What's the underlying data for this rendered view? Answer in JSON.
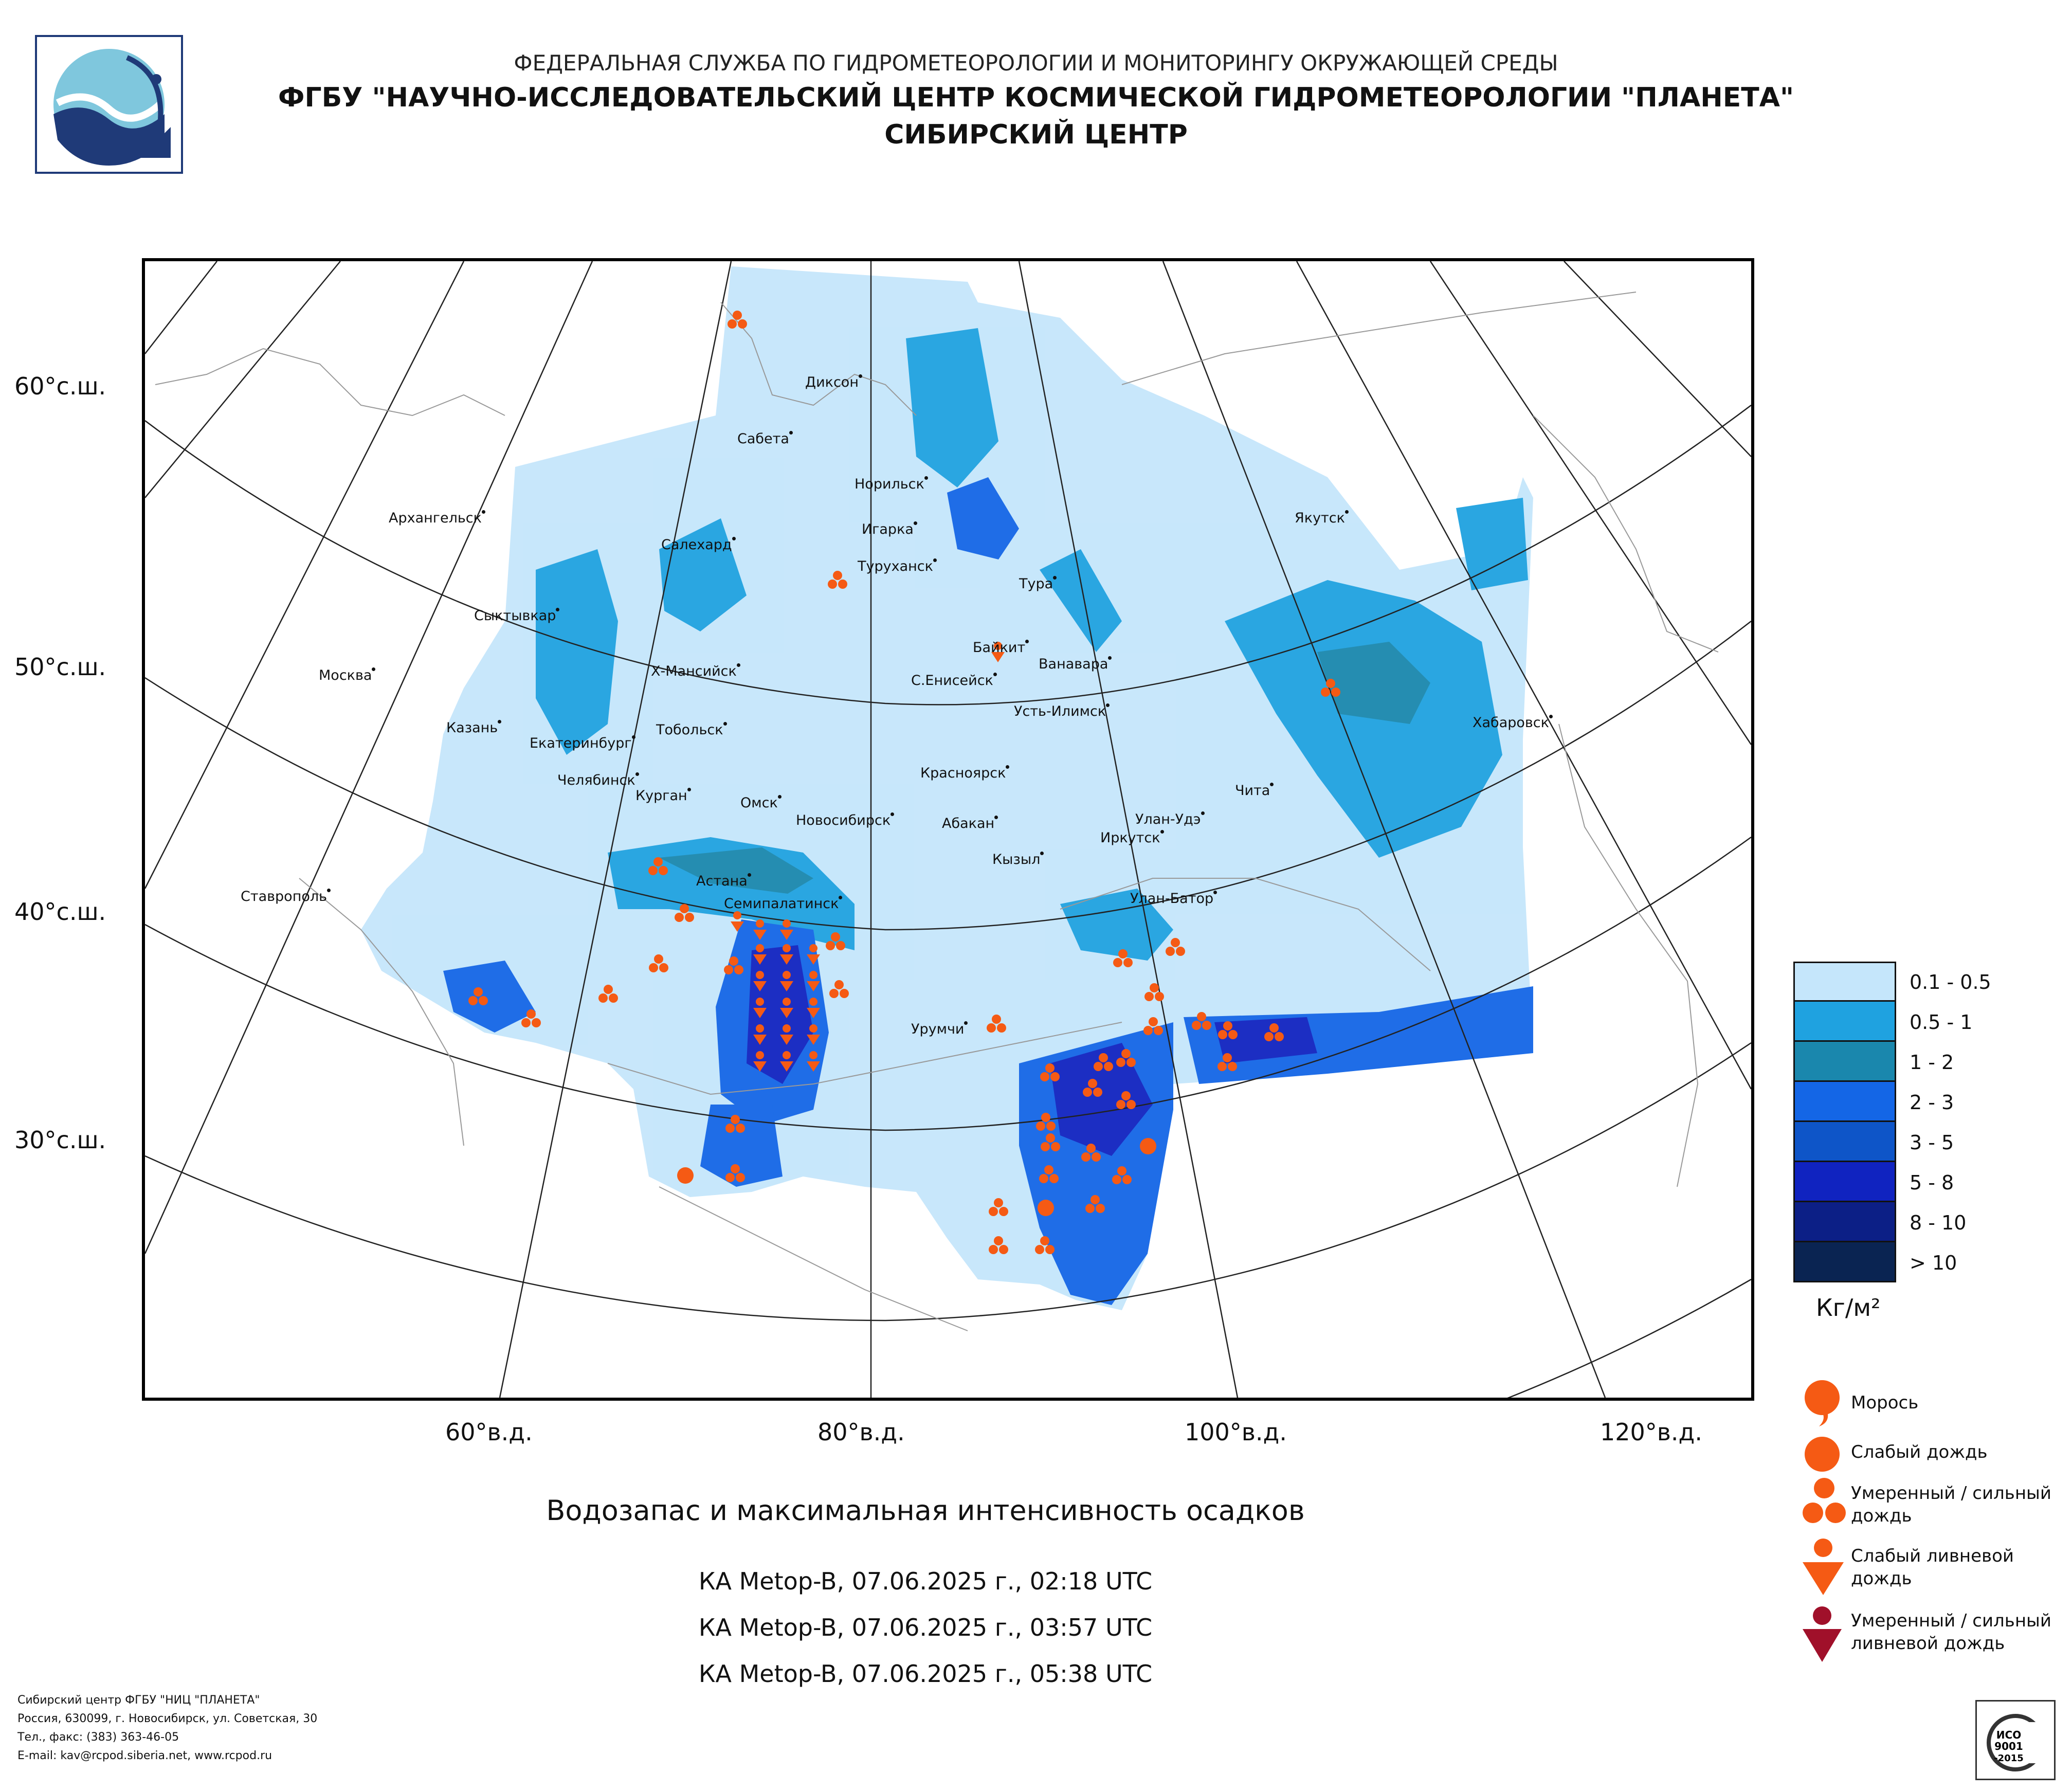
{
  "header": {
    "line1": "ФЕДЕРАЛЬНАЯ СЛУЖБА ПО ГИДРОМЕТЕОРОЛОГИИ И МОНИТОРИНГУ ОКРУЖАЮЩЕЙ СРЕДЫ",
    "line2": "ФГБУ \"НАУЧНО-ИССЛЕДОВАТЕЛЬСКИЙ ЦЕНТР КОСМИЧЕСКОЙ ГИДРОМЕТЕОРОЛОГИИ \"ПЛАНЕТА\"",
    "line3": "СИБИРСКИЙ ЦЕНТР"
  },
  "map": {
    "latitude_labels": [
      "60°с.ш.",
      "50°с.ш.",
      "40°с.ш.",
      "30°с.ш."
    ],
    "longitude_labels": [
      "60°в.д.",
      "80°в.д.",
      "100°в.д.",
      "120°в.д."
    ],
    "cities": [
      "Диксон",
      "Сабета",
      "Норильск",
      "Игарка",
      "Салехард",
      "Архангельск",
      "Туруханск",
      "Тура",
      "Якутск",
      "Сыктывкар",
      "Байкит",
      "Ванавара",
      "Москва",
      "Х-Мансийск",
      "С.Енисейск",
      "Усть-Илимск",
      "Казань",
      "Екатеринбург",
      "Тобольск",
      "Хабаровск",
      "Челябинск",
      "Курган",
      "Красноярск",
      "Чита",
      "Омск",
      "Новосибирск",
      "Абакан",
      "Улан-Удэ",
      "Иркутск",
      "Кызыл",
      "Астана",
      "Ставрополь",
      "Семипалатинск",
      "Улан-Батор",
      "Урумчи"
    ]
  },
  "legend": {
    "bins": [
      {
        "label": "0.1 - 0.5",
        "color": "#c5e6fb"
      },
      {
        "label": "0.5 - 1",
        "color": "#1fa2e0"
      },
      {
        "label": "1 - 2",
        "color": "#1a87ad"
      },
      {
        "label": "2 - 3",
        "color": "#1466e6"
      },
      {
        "label": "3 - 5",
        "color": "#0e55c8"
      },
      {
        "label": "5 - 8",
        "color": "#1023c0"
      },
      {
        "label": "8 - 10",
        "color": "#0c1f86"
      },
      {
        "label": "> 10",
        "color": "#0a2452"
      }
    ],
    "unit": "Кг/м²",
    "symbols": {
      "drizzle": "Морось",
      "light_rain": "Слабый дождь",
      "moderate_rain": "Умеренный / сильный дождь",
      "light_shower": "Слабый ливневой дождь",
      "moderate_shower": "Умеренный / сильный ливневой дождь"
    },
    "symbol_colors": {
      "rain": "#f55a14",
      "heavy_shower": "#a0102a"
    }
  },
  "title": "Водозапас и максимальная интенсивность осадков",
  "passes": [
    "КА Metop-B, 07.06.2025 г., 02:18 UTC",
    "КА Metop-B, 07.06.2025 г., 03:57 UTC",
    "КА Metop-B, 07.06.2025 г., 05:38 UTC"
  ],
  "footer": {
    "line1": "Сибирский центр ФГБУ \"НИЦ \"ПЛАНЕТА\"",
    "line2": "Россия, 630099, г. Новосибирск, ул. Советская, 30",
    "line3": "Тел., факс: (383) 363-46-05",
    "line4": "E-mail: kav@rcpod.siberia.net, www.rcpod.ru"
  },
  "iso_badge": "ИСО 9001 -2015"
}
